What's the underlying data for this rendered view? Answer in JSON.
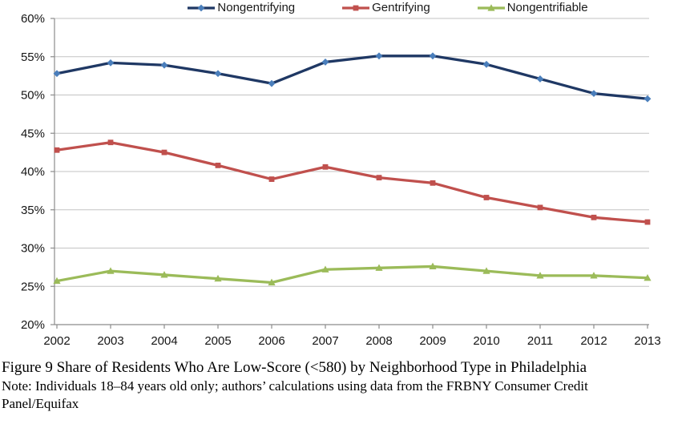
{
  "chart_data": {
    "type": "line",
    "categories": [
      "2002",
      "2003",
      "2004",
      "2005",
      "2006",
      "2007",
      "2008",
      "2009",
      "2010",
      "2011",
      "2012",
      "2013"
    ],
    "series": [
      {
        "name": "Nongentrifying",
        "color": "#1f3864",
        "marker": "diamond",
        "marker_color": "#4a7ebb",
        "values": [
          52.8,
          54.2,
          53.9,
          52.8,
          51.5,
          54.3,
          55.1,
          55.1,
          54.0,
          52.1,
          50.2,
          49.5
        ]
      },
      {
        "name": "Gentrifying",
        "color": "#c0504d",
        "marker": "square",
        "marker_color": "#c0504d",
        "values": [
          42.8,
          43.8,
          42.5,
          40.8,
          39.0,
          40.6,
          39.2,
          38.5,
          36.6,
          35.3,
          34.0,
          33.4
        ]
      },
      {
        "name": "Nongentrifiable",
        "color": "#9bbb59",
        "marker": "triangle",
        "marker_color": "#9bbb59",
        "values": [
          25.7,
          27.0,
          26.5,
          26.0,
          25.5,
          27.2,
          27.4,
          27.6,
          27.0,
          26.4,
          26.4,
          26.1
        ]
      }
    ],
    "ylim": [
      20,
      60
    ],
    "ytick_step": 5,
    "ytick_labels": [
      "20%",
      "25%",
      "30%",
      "35%",
      "40%",
      "45%",
      "50%",
      "55%",
      "60%"
    ],
    "grid": "horizontal",
    "legend_position": "top",
    "colors": {
      "grid": "#c3c3c3",
      "axis": "#8c8c8c",
      "tick_text": "#151515"
    }
  },
  "caption": {
    "title": "Figure 9 Share of Residents Who Are Low-Score (<580) by Neighborhood Type in Philadelphia",
    "note_line1": "Note: Individuals 18–84 years old only; authors’ calculations using data from the FRBNY Consumer Credit",
    "note_line2": "Panel/Equifax"
  }
}
